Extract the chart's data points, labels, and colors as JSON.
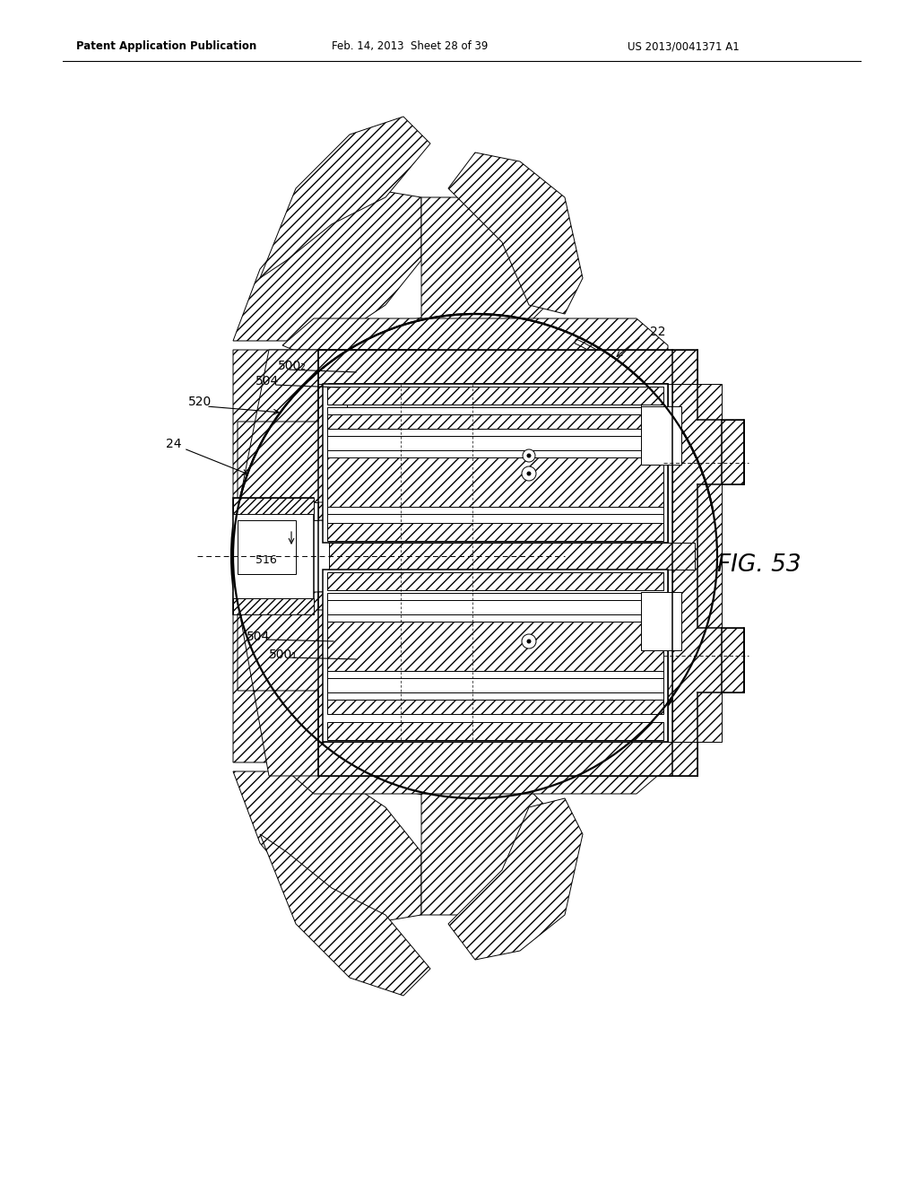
{
  "header_left": "Patent Application Publication",
  "header_mid": "Feb. 14, 2013  Sheet 28 of 39",
  "header_right": "US 2013/0041371 A1",
  "fig_label": "FIG. 53",
  "bg_color": "#ffffff",
  "line_color": "#000000"
}
